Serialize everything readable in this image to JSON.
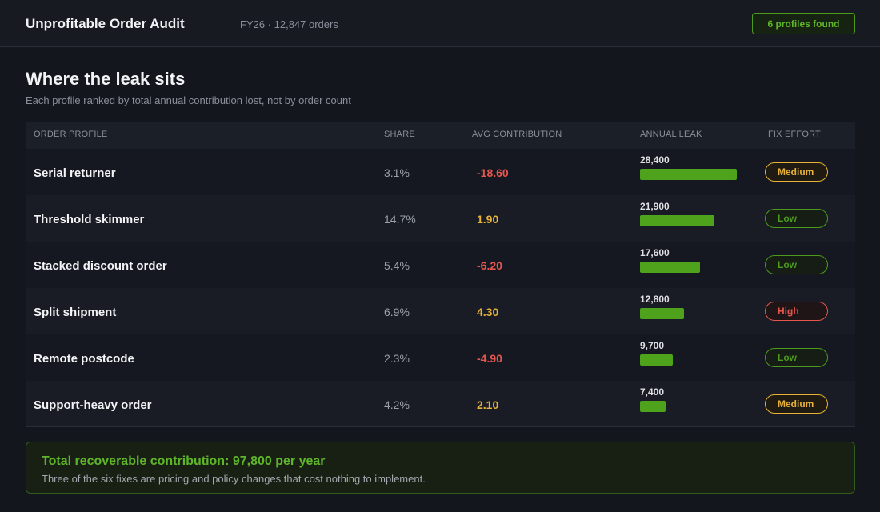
{
  "header": {
    "title": "Unprofitable Order Audit",
    "meta": "FY26 · 12,847 orders",
    "badge": "6 profiles found"
  },
  "section": {
    "title": "Where the leak sits",
    "subtitle": "Each profile ranked by total annual contribution lost, not by order count"
  },
  "table": {
    "columns": {
      "profile": "ORDER PROFILE",
      "share": "SHARE",
      "avg": "AVG CONTRIBUTION",
      "leak": "ANNUAL LEAK",
      "effort": "FIX EFFORT"
    },
    "max_leak": 28400,
    "rows": [
      {
        "name": "Serial returner",
        "share": "3.1%",
        "avg": "-18.60",
        "leak": "28,400",
        "leak_value": 28400,
        "effort": "Medium"
      },
      {
        "name": "Threshold skimmer",
        "share": "14.7%",
        "avg": "1.90",
        "leak": "21,900",
        "leak_value": 21900,
        "effort": "Low"
      },
      {
        "name": "Stacked discount order",
        "share": "5.4%",
        "avg": "-6.20",
        "leak": "17,600",
        "leak_value": 17600,
        "effort": "Low"
      },
      {
        "name": "Split shipment",
        "share": "6.9%",
        "avg": "4.30",
        "leak": "12,800",
        "leak_value": 12800,
        "effort": "High"
      },
      {
        "name": "Remote postcode",
        "share": "2.3%",
        "avg": "-4.90",
        "leak": "9,700",
        "leak_value": 9700,
        "effort": "Low"
      },
      {
        "name": "Support-heavy order",
        "share": "4.2%",
        "avg": "2.10",
        "leak": "7,400",
        "leak_value": 7400,
        "effort": "Medium"
      }
    ]
  },
  "summary": {
    "title": "Total recoverable contribution: 97,800 per year",
    "subtitle": "Three of the six fixes are pricing and policy changes that cost nothing to implement."
  },
  "colors": {
    "accent_green": "#5fb52a",
    "negative": "#e5564f",
    "positive": "#e8b23a",
    "bar": "#4fa21b"
  }
}
